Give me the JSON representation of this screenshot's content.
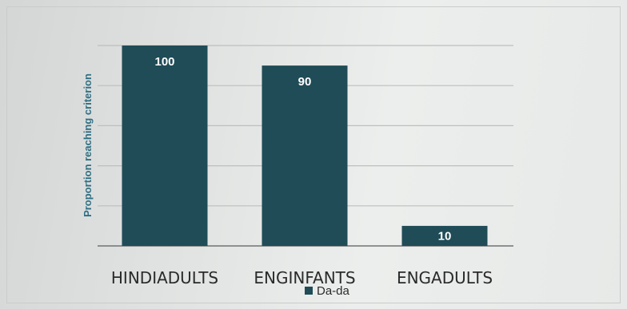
{
  "colors": {
    "bar": "#1f4c57",
    "grid": "#bdbfbe",
    "axis_label": "#2f6f82",
    "data_label": "#ffffff"
  },
  "chart_data": {
    "type": "bar",
    "title": "",
    "xlabel": "",
    "ylabel": "Proportion reaching criterion",
    "categories": [
      "HINDIADULTS",
      "ENGINFANTS",
      "ENGADULTS"
    ],
    "series": [
      {
        "name": "Da-da",
        "values": [
          100,
          90,
          10
        ]
      }
    ],
    "data_labels": [
      "100",
      "90",
      "10"
    ],
    "ylim": [
      0,
      100
    ],
    "grid": true,
    "legend": "bottom"
  }
}
